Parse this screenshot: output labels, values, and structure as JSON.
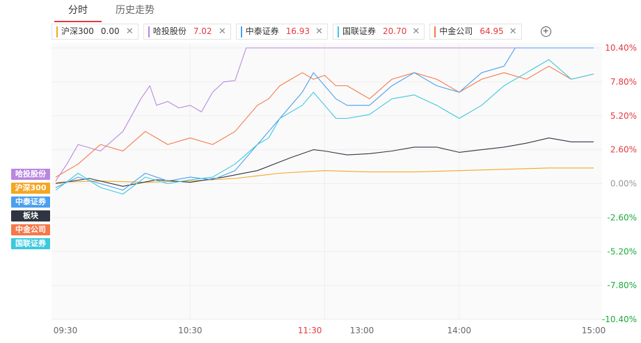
{
  "tabs": [
    {
      "label": "分时",
      "active": true
    },
    {
      "label": "历史走势",
      "active": false
    }
  ],
  "chips": [
    {
      "name": "沪深300",
      "value": "0.00",
      "color": "#f5a623"
    },
    {
      "name": "哈投股份",
      "value": "7.02",
      "color": "#b987e0"
    },
    {
      "name": "中泰证券",
      "value": "16.93",
      "color": "#4a9ff0"
    },
    {
      "name": "国联证券",
      "value": "20.70",
      "color": "#3cc9de"
    },
    {
      "name": "中金公司",
      "value": "64.95",
      "color": "#f5784a"
    }
  ],
  "legend_tags": [
    {
      "label": "哈投股份",
      "color": "#b987e0"
    },
    {
      "label": "沪深300",
      "color": "#f5a623"
    },
    {
      "label": "中泰证券",
      "color": "#4a9ff0"
    },
    {
      "label": "板块",
      "color": "#2f3541"
    },
    {
      "label": "中金公司",
      "color": "#f5784a"
    },
    {
      "label": "国联证券",
      "color": "#3cc9de"
    }
  ],
  "chart_data": {
    "type": "line",
    "ylim": [
      -10.4,
      10.4
    ],
    "y_ticks": [
      "10.40%",
      "7.80%",
      "5.20%",
      "2.60%",
      "0.00%",
      "-2.60%",
      "-5.20%",
      "-7.80%",
      "-10.40%"
    ],
    "y_tick_colors": {
      "positive": "#e4393c",
      "zero": "#999999",
      "negative": "#1aab3a"
    },
    "x_ticks": [
      {
        "label": "09:30",
        "t": 0,
        "color": "#666666"
      },
      {
        "label": "10:30",
        "t": 60,
        "color": "#666666"
      },
      {
        "label": "11:30",
        "t": 120,
        "color": "#e4393c"
      },
      {
        "label": "13:00",
        "t": 130,
        "color": "#666666"
      },
      {
        "label": "14:00",
        "t": 180,
        "color": "#666666"
      },
      {
        "label": "15:00",
        "t": 240,
        "color": "#666666"
      }
    ],
    "x_range": [
      0,
      240
    ],
    "grid": true,
    "series": [
      {
        "name": "沪深300",
        "color": "#f5a623",
        "x": [
          0,
          20,
          40,
          60,
          80,
          100,
          120,
          140,
          160,
          180,
          200,
          220,
          240
        ],
        "y": [
          0.1,
          0.2,
          0.1,
          0.2,
          0.4,
          0.8,
          1.0,
          0.9,
          0.9,
          1.0,
          1.1,
          1.2,
          1.2
        ]
      },
      {
        "name": "板块",
        "color": "#2f3541",
        "x": [
          0,
          15,
          30,
          45,
          60,
          75,
          90,
          105,
          115,
          120,
          130,
          140,
          150,
          160,
          170,
          180,
          190,
          200,
          210,
          220,
          230,
          240
        ],
        "y": [
          0.0,
          0.4,
          -0.2,
          0.3,
          0.1,
          0.5,
          1.0,
          2.0,
          2.6,
          2.5,
          2.2,
          2.3,
          2.5,
          2.8,
          2.8,
          2.4,
          2.6,
          2.8,
          3.1,
          3.5,
          3.2,
          3.2
        ]
      },
      {
        "name": "哈投股份",
        "color": "#b987e0",
        "x": [
          0,
          5,
          10,
          20,
          30,
          38,
          42,
          45,
          50,
          55,
          60,
          65,
          70,
          75,
          80,
          85,
          90,
          95,
          100,
          110,
          120,
          130,
          140,
          150,
          160,
          170,
          180,
          190,
          200,
          210,
          220,
          230,
          240
        ],
        "y": [
          0.2,
          1.5,
          3.0,
          2.5,
          4.0,
          6.5,
          7.5,
          6.0,
          6.3,
          5.8,
          6.0,
          5.5,
          7.0,
          7.8,
          7.9,
          10.4,
          10.4,
          10.4,
          10.4,
          10.4,
          10.4,
          10.4,
          10.4,
          10.4,
          10.4,
          10.4,
          10.4,
          10.4,
          10.4,
          10.4,
          10.4,
          10.4,
          10.4
        ]
      },
      {
        "name": "中金公司",
        "color": "#f5784a",
        "x": [
          0,
          10,
          20,
          30,
          40,
          50,
          60,
          70,
          80,
          90,
          95,
          100,
          110,
          115,
          120,
          125,
          130,
          140,
          150,
          160,
          170,
          180,
          190,
          200,
          210,
          220,
          230,
          240
        ],
        "y": [
          0.5,
          1.5,
          3.0,
          2.5,
          4.0,
          3.0,
          3.5,
          3.0,
          4.0,
          6.0,
          6.5,
          7.5,
          8.5,
          8.0,
          8.3,
          7.5,
          7.5,
          6.5,
          8.0,
          8.5,
          8.0,
          7.0,
          8.0,
          8.5,
          8.0,
          9.0,
          8.0,
          8.4
        ]
      },
      {
        "name": "中泰证券",
        "color": "#4a9ff0",
        "x": [
          0,
          10,
          20,
          30,
          40,
          50,
          60,
          70,
          80,
          90,
          95,
          100,
          110,
          115,
          120,
          125,
          130,
          140,
          150,
          160,
          170,
          180,
          190,
          200,
          205,
          210,
          220,
          230,
          240
        ],
        "y": [
          -0.3,
          0.5,
          0.0,
          -0.5,
          0.8,
          0.2,
          0.5,
          0.3,
          1.0,
          3.0,
          4.0,
          5.0,
          7.0,
          8.5,
          7.5,
          6.5,
          6.0,
          6.0,
          7.5,
          8.5,
          7.5,
          7.0,
          8.5,
          9.0,
          10.4,
          10.4,
          10.4,
          10.4,
          10.4
        ]
      },
      {
        "name": "国联证券",
        "color": "#3cc9de",
        "x": [
          0,
          10,
          20,
          30,
          40,
          50,
          60,
          70,
          80,
          90,
          95,
          100,
          110,
          115,
          120,
          125,
          130,
          140,
          150,
          160,
          170,
          180,
          190,
          200,
          210,
          220,
          230,
          240
        ],
        "y": [
          -0.5,
          0.8,
          -0.3,
          -0.8,
          0.5,
          0.0,
          0.3,
          0.5,
          1.5,
          3.0,
          3.5,
          5.0,
          6.0,
          7.0,
          6.0,
          5.0,
          5.0,
          5.3,
          6.5,
          6.8,
          6.0,
          5.0,
          6.0,
          7.5,
          8.5,
          9.5,
          8.0,
          8.4
        ]
      }
    ]
  }
}
